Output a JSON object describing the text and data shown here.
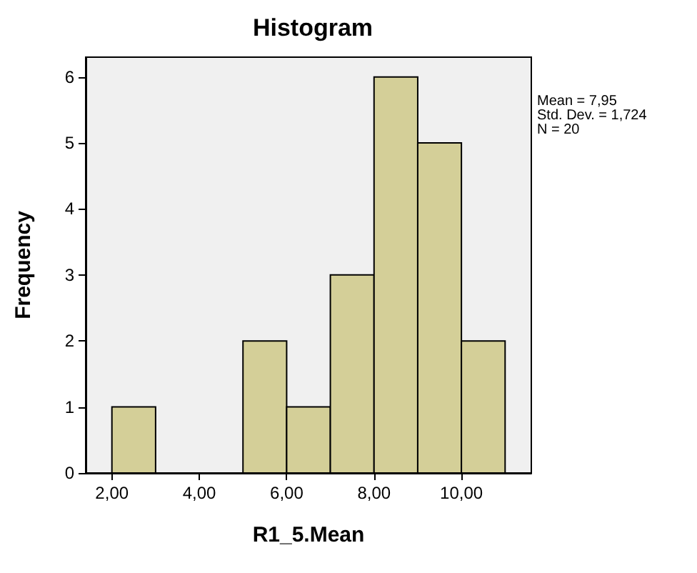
{
  "chart_data": {
    "type": "histogram",
    "title": "Histogram",
    "xlabel": "R1_5.Mean",
    "ylabel": "Frequency",
    "bins": [
      2,
      3,
      4,
      5,
      6,
      7,
      8,
      9,
      10,
      11
    ],
    "values": [
      1,
      0,
      0,
      2,
      1,
      3,
      6,
      5,
      2
    ],
    "color": "#d4cf98",
    "xlim": [
      1.4,
      11.6
    ],
    "xticks": [
      {
        "value": 2,
        "label": "2,00"
      },
      {
        "value": 4,
        "label": "4,00"
      },
      {
        "value": 6,
        "label": "6,00"
      },
      {
        "value": 8,
        "label": "8,00"
      },
      {
        "value": 10,
        "label": "10,00"
      }
    ],
    "ylim": [
      0,
      6.3
    ],
    "yticks": [
      0,
      1,
      2,
      3,
      4,
      5,
      6
    ],
    "annotations": [
      "Mean = 7,95",
      "Std. Dev. = 1,724",
      "N = 20"
    ],
    "grid": false
  }
}
